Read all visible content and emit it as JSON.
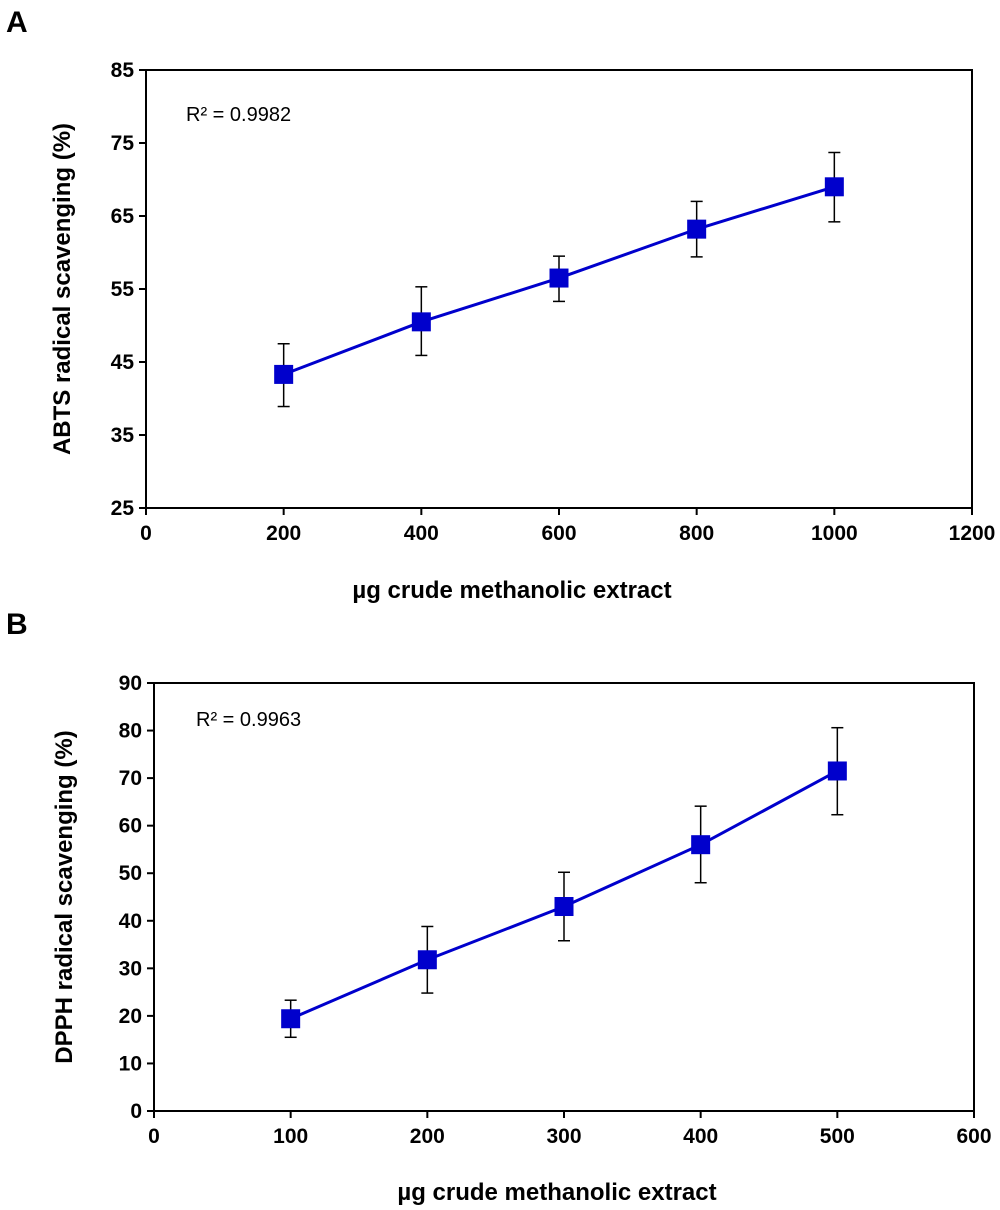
{
  "chart_data": [
    {
      "panel_label": "A",
      "type": "line",
      "xlabel": "µg crude methanolic extract",
      "ylabel": "ABTS radical scavenging (%)",
      "xlim": [
        0,
        1200
      ],
      "ylim": [
        25,
        85
      ],
      "xticks": [
        0,
        200,
        400,
        600,
        800,
        1000,
        1200
      ],
      "yticks": [
        25,
        35,
        45,
        55,
        65,
        75,
        85
      ],
      "x": [
        200,
        400,
        600,
        800,
        1000
      ],
      "y": [
        43.3,
        50.5,
        56.5,
        63.2,
        69.0
      ],
      "err_upper": [
        47.5,
        55.3,
        59.5,
        67.0,
        73.7
      ],
      "err_lower": [
        38.9,
        45.9,
        53.3,
        59.4,
        64.2
      ],
      "annotation": "R² = 0.9982",
      "color": "#0000cc"
    },
    {
      "panel_label": "B",
      "type": "line",
      "xlabel": "µg crude methanolic extract",
      "ylabel": "DPPH radical scavenging (%)",
      "xlim": [
        0,
        600
      ],
      "ylim": [
        0,
        90
      ],
      "xticks": [
        0,
        100,
        200,
        300,
        400,
        500,
        600
      ],
      "yticks": [
        0,
        10,
        20,
        30,
        40,
        50,
        60,
        70,
        80,
        90
      ],
      "x": [
        100,
        200,
        300,
        400,
        500
      ],
      "y": [
        19.4,
        31.8,
        43.0,
        56.0,
        71.5
      ],
      "err_upper": [
        23.3,
        38.8,
        50.2,
        64.1,
        80.6
      ],
      "err_lower": [
        15.5,
        24.8,
        35.8,
        48.0,
        62.3
      ],
      "annotation": "R² = 0.9963",
      "color": "#0000cc"
    }
  ]
}
